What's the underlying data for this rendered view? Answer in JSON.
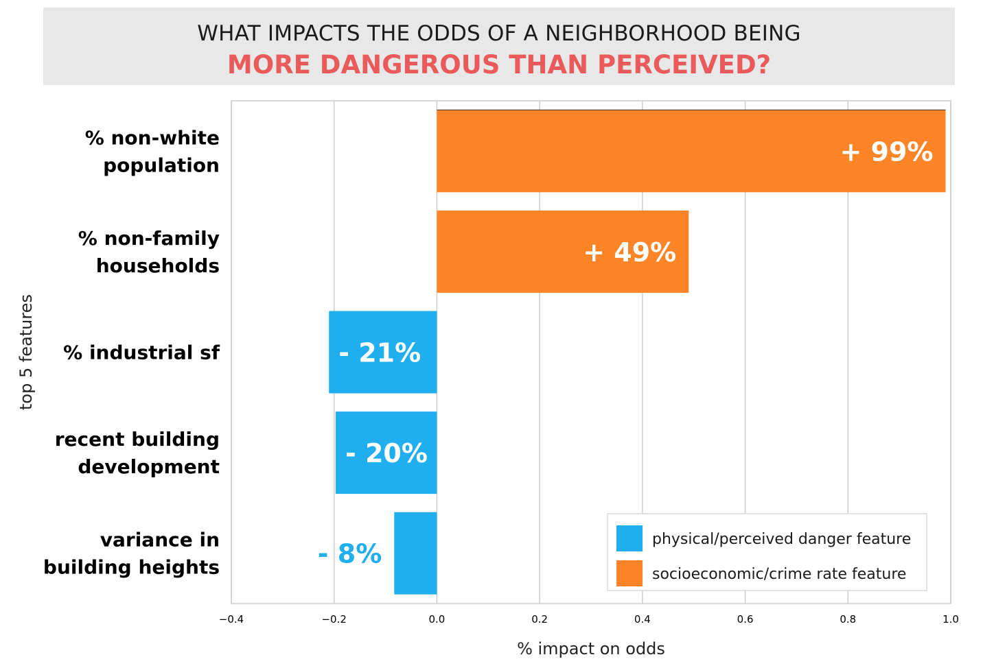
{
  "title": {
    "line1": "WHAT IMPACTS THE ODDS OF A NEIGHBORHOOD BEING",
    "line2": "MORE DANGEROUS THAN PERCEIVED?"
  },
  "colors": {
    "physical": "#21aeef",
    "socioeconomic": "#fd8427",
    "title_accent": "#eb5a5a"
  },
  "chart_data": {
    "type": "bar",
    "orientation": "horizontal",
    "xlabel": "% impact on odds",
    "ylabel": "top 5 features",
    "xlim": [
      -0.4,
      1.0
    ],
    "xticks": [
      "−0.4",
      "−0.2",
      "0.0",
      "0.2",
      "0.4",
      "0.6",
      "0.8",
      "1.0"
    ],
    "grid": "vertical",
    "legend_position": "bottom-right",
    "legend": [
      {
        "label": "physical/perceived danger feature",
        "group": "physical"
      },
      {
        "label": "socioeconomic/crime rate feature",
        "group": "socioeconomic"
      }
    ],
    "bars": [
      {
        "category": [
          "% non-white",
          "population"
        ],
        "value": 0.99,
        "label": "+ 99%",
        "group": "socioeconomic"
      },
      {
        "category": [
          "% non-family",
          "households"
        ],
        "value": 0.49,
        "label": "+ 49%",
        "group": "socioeconomic"
      },
      {
        "category": [
          "% industrial sf"
        ],
        "value": -0.21,
        "label": "- 21%",
        "group": "physical"
      },
      {
        "category": [
          "recent building",
          "development"
        ],
        "value": -0.197,
        "label": "- 20%",
        "group": "physical"
      },
      {
        "category": [
          "variance in",
          "building heights"
        ],
        "value": -0.083,
        "label": "- 8%",
        "group": "physical"
      }
    ]
  }
}
